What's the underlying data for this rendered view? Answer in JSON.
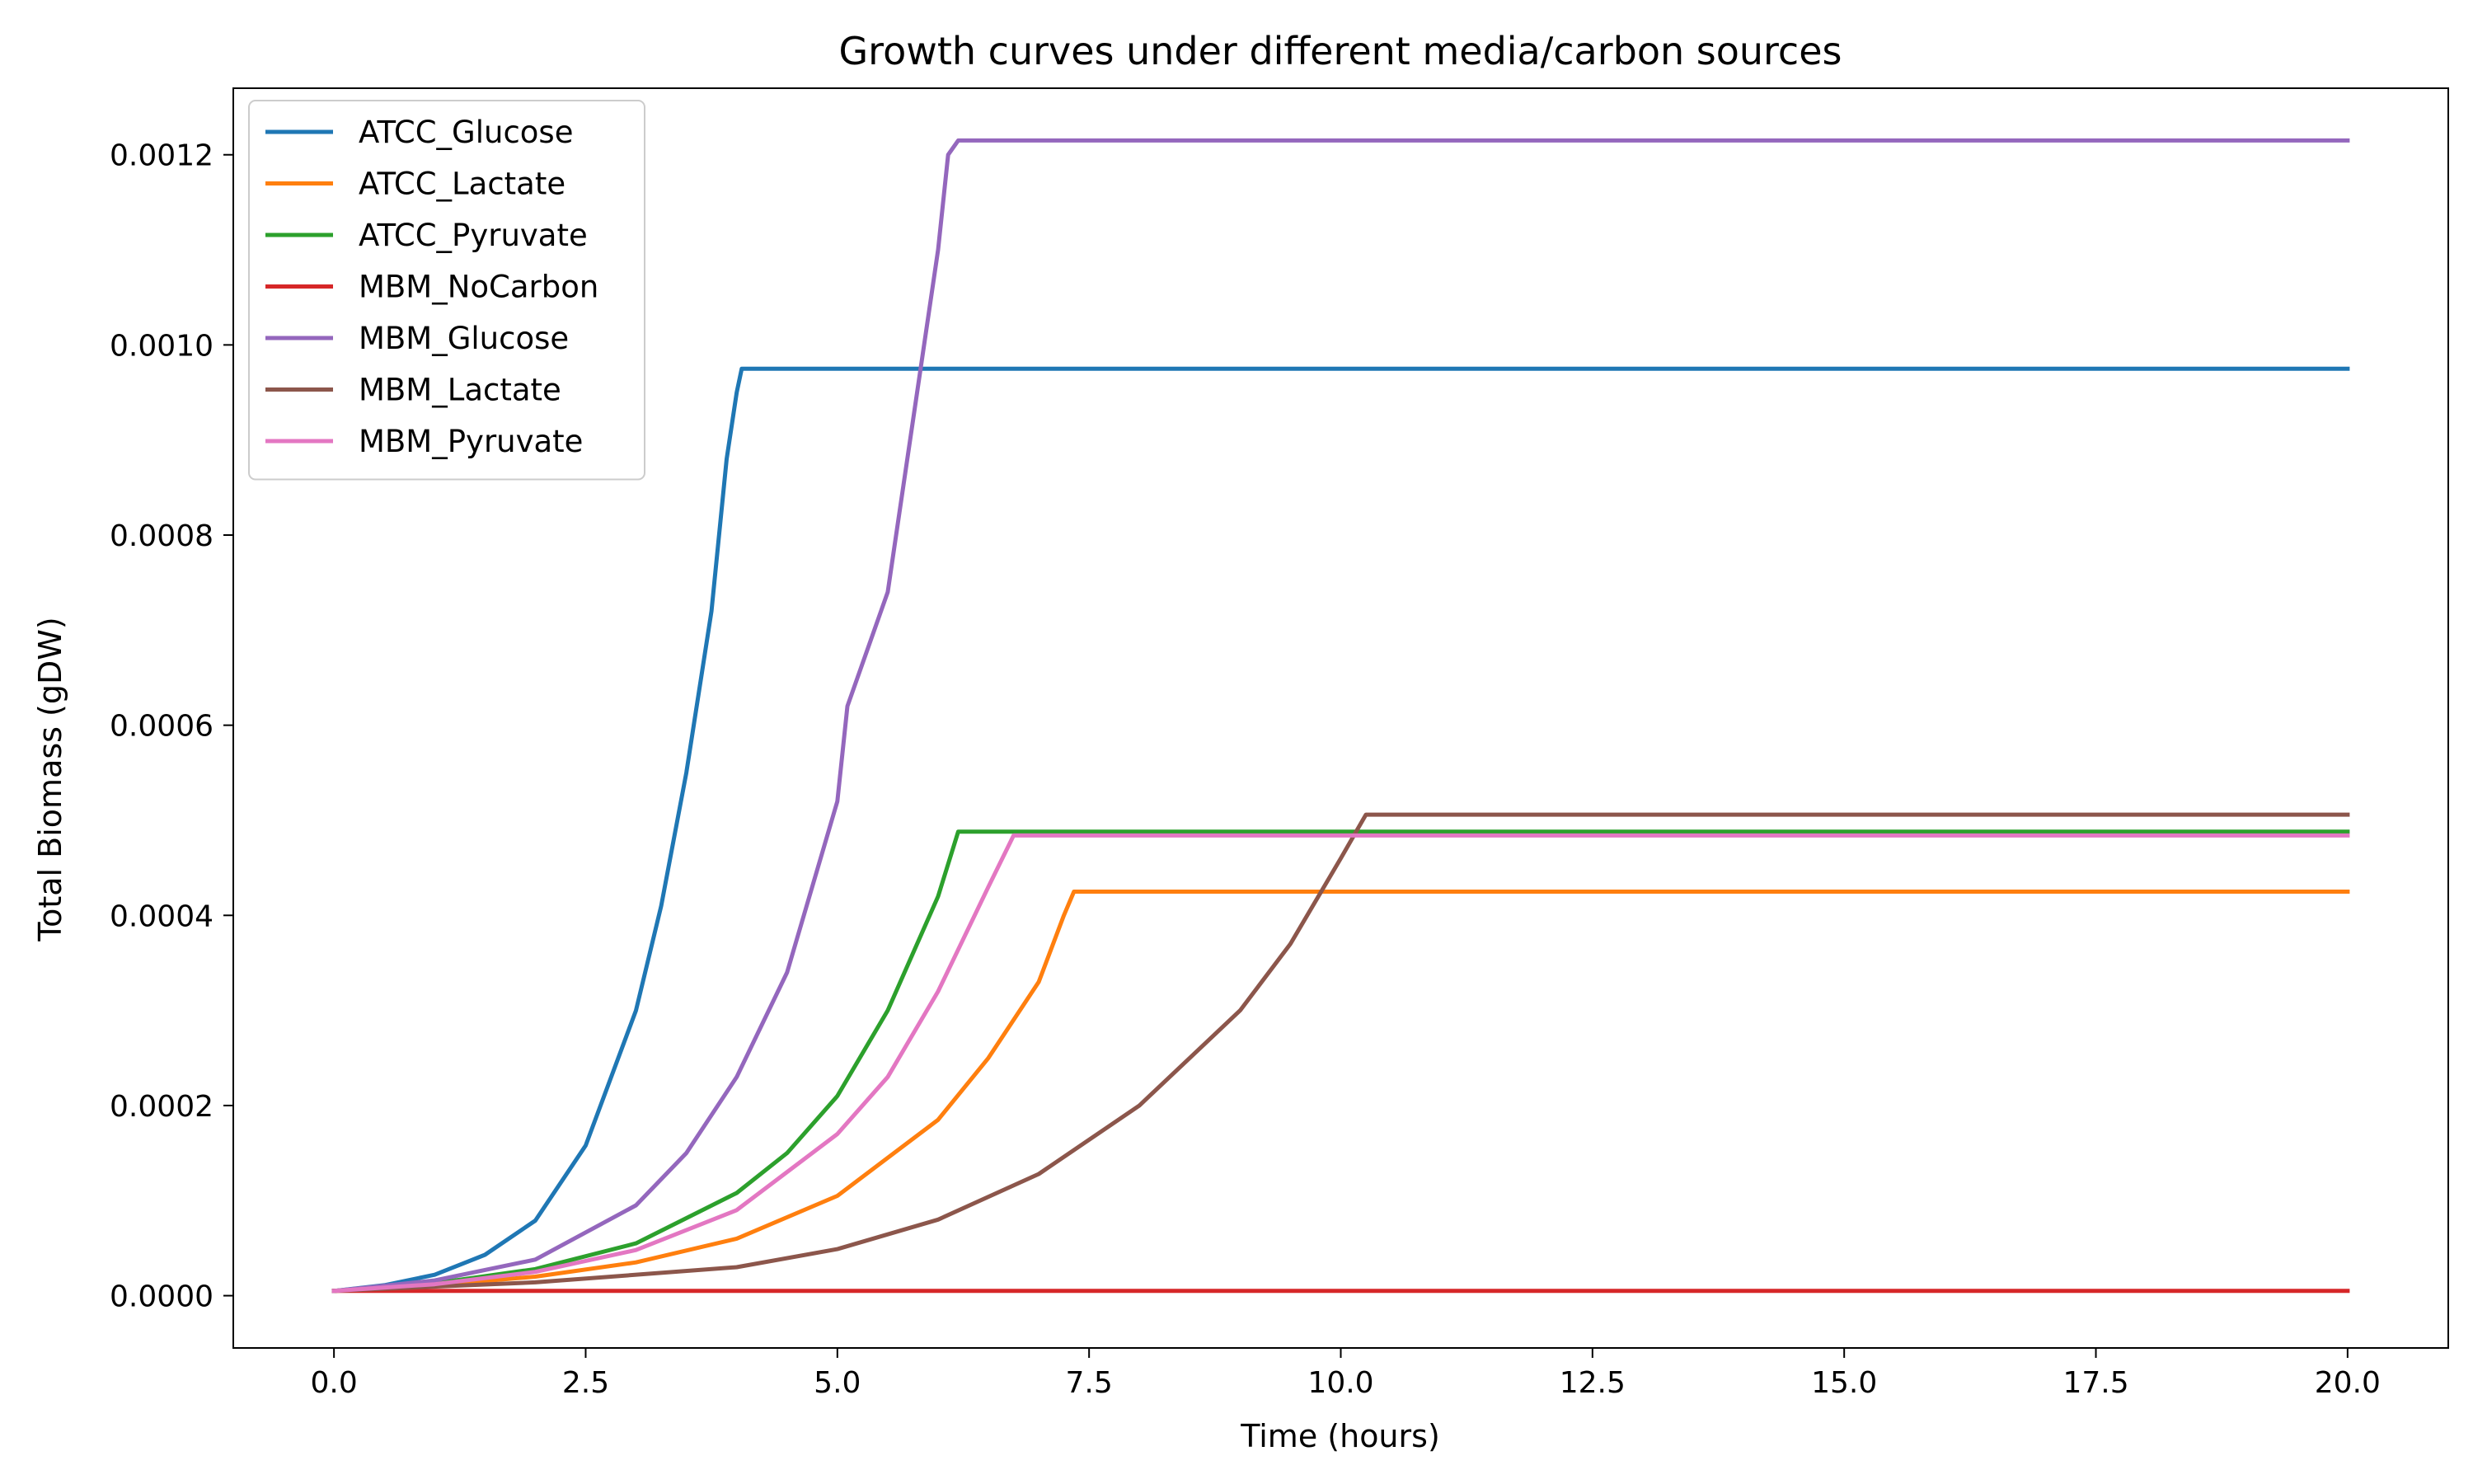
{
  "chart_data": {
    "type": "line",
    "title": "Growth curves under different media/carbon sources",
    "xlabel": "Time (hours)",
    "ylabel": "Total Biomass (gDW)",
    "xlim": [
      -1.0,
      21.0
    ],
    "ylim": [
      -5.5e-05,
      0.00127
    ],
    "xticks": [
      0.0,
      2.5,
      5.0,
      7.5,
      10.0,
      12.5,
      15.0,
      17.5,
      20.0
    ],
    "xtick_labels": [
      "0.0",
      "2.5",
      "5.0",
      "7.5",
      "10.0",
      "12.5",
      "15.0",
      "17.5",
      "20.0"
    ],
    "yticks": [
      0.0,
      0.0002,
      0.0004,
      0.0006,
      0.0008,
      0.001,
      0.0012
    ],
    "ytick_labels": [
      "0.0000",
      "0.0002",
      "0.0004",
      "0.0006",
      "0.0008",
      "0.0010",
      "0.0012"
    ],
    "grid": false,
    "legend_position": "top-left",
    "series": [
      {
        "name": "ATCC_Glucose",
        "color": "#1f77b4",
        "x": [
          0,
          0.5,
          1.0,
          1.5,
          2.0,
          2.5,
          3.0,
          3.25,
          3.5,
          3.75,
          3.9,
          4.0,
          4.05,
          20.0
        ],
        "y": [
          5e-06,
          1.1e-05,
          2.2e-05,
          4.3e-05,
          7.9e-05,
          0.000158,
          0.0003,
          0.00041,
          0.00055,
          0.00072,
          0.00088,
          0.00095,
          0.000975,
          0.000975
        ]
      },
      {
        "name": "ATCC_Lactate",
        "color": "#ff7f0e",
        "x": [
          0,
          1.0,
          2.0,
          3.0,
          4.0,
          5.0,
          6.0,
          6.5,
          7.0,
          7.25,
          7.35,
          20.0
        ],
        "y": [
          5e-06,
          1.1e-05,
          2e-05,
          3.5e-05,
          6e-05,
          0.000105,
          0.000185,
          0.00025,
          0.00033,
          0.0004,
          0.000425,
          0.000425
        ]
      },
      {
        "name": "ATCC_Pyruvate",
        "color": "#2ca02c",
        "x": [
          0,
          1.0,
          2.0,
          3.0,
          4.0,
          4.5,
          5.0,
          5.5,
          6.0,
          6.2,
          20.0
        ],
        "y": [
          5e-06,
          1.3e-05,
          2.8e-05,
          5.5e-05,
          0.000108,
          0.00015,
          0.00021,
          0.0003,
          0.00042,
          0.000488,
          0.000488
        ]
      },
      {
        "name": "MBM_NoCarbon",
        "color": "#d62728",
        "x": [
          0,
          20.0
        ],
        "y": [
          5e-06,
          5e-06
        ]
      },
      {
        "name": "MBM_Glucose",
        "color": "#9467bd",
        "x": [
          0,
          1.0,
          2.0,
          3.0,
          3.5,
          4.0,
          4.5,
          5.0,
          5.1,
          5.5,
          6.0,
          6.1,
          6.2,
          20.0
        ],
        "y": [
          5e-06,
          1.6e-05,
          3.8e-05,
          9.5e-05,
          0.00015,
          0.00023,
          0.00034,
          0.00052,
          0.00062,
          0.00074,
          0.0011,
          0.0012,
          0.001215,
          0.001215
        ]
      },
      {
        "name": "MBM_Lactate",
        "color": "#8c564b",
        "x": [
          0,
          2.0,
          4.0,
          5.0,
          6.0,
          7.0,
          8.0,
          9.0,
          9.5,
          10.0,
          10.25,
          20.0
        ],
        "y": [
          5e-06,
          1.4e-05,
          3e-05,
          4.9e-05,
          8e-05,
          0.000128,
          0.0002,
          0.0003,
          0.00037,
          0.00046,
          0.000506,
          0.000506
        ]
      },
      {
        "name": "MBM_Pyruvate",
        "color": "#e377c2",
        "x": [
          0,
          1.0,
          2.0,
          3.0,
          4.0,
          5.0,
          5.5,
          6.0,
          6.5,
          6.75,
          20.0
        ],
        "y": [
          5e-06,
          1.2e-05,
          2.5e-05,
          4.8e-05,
          9e-05,
          0.00017,
          0.00023,
          0.00032,
          0.00043,
          0.000484,
          0.000484
        ]
      }
    ]
  }
}
